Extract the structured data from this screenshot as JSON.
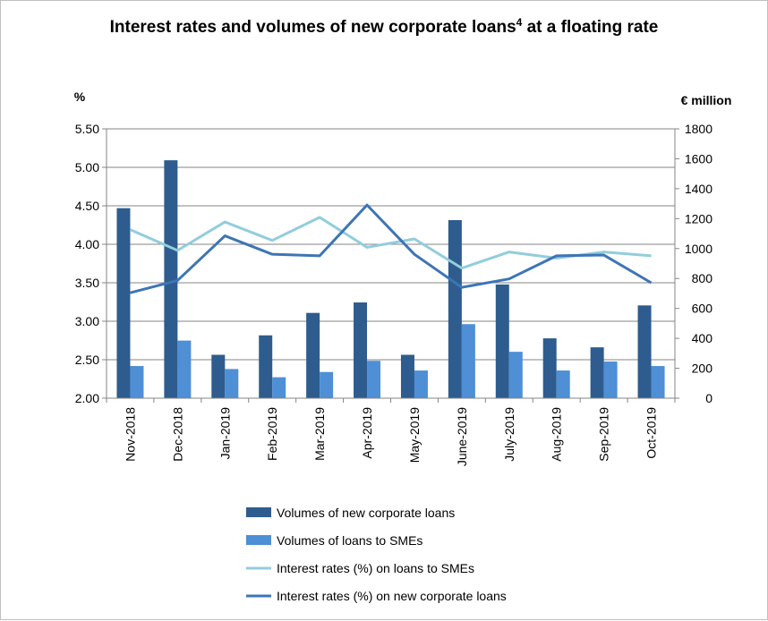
{
  "chart_data": {
    "type": "bar",
    "title": "Interest rates and volumes of new corporate loans",
    "title_superscript": "4",
    "title_suffix": " at a floating rate",
    "y_left_unit": "%",
    "y_right_unit": "€ million",
    "y_left_range": [
      2.0,
      5.5
    ],
    "y_left_ticks": [
      "2.00",
      "2.50",
      "3.00",
      "3.50",
      "4.00",
      "4.50",
      "5.00",
      "5.50"
    ],
    "y_right_range": [
      0,
      1800
    ],
    "y_right_ticks": [
      "0",
      "200",
      "400",
      "600",
      "800",
      "1000",
      "1200",
      "1400",
      "1600",
      "1800"
    ],
    "grid": true,
    "legend_position": "bottom",
    "categories": [
      "Nov-2018",
      "Dec-2018",
      "Jan-2019",
      "Feb-2019",
      "Mar-2019",
      "Apr-2019",
      "May-2019",
      "June-2019",
      "July-2019",
      "Aug-2019",
      "Sep-2019",
      "Oct-2019"
    ],
    "series": [
      {
        "name": "Volumes of new corporate loans",
        "type": "bar",
        "axis": "right",
        "color": "#2e5c8e",
        "values": [
          1270,
          1590,
          290,
          420,
          570,
          640,
          290,
          1190,
          760,
          400,
          340,
          620
        ]
      },
      {
        "name": "Volumes of loans to SMEs",
        "type": "bar",
        "axis": "right",
        "color": "#4e8fd6",
        "values": [
          215,
          385,
          195,
          140,
          175,
          250,
          185,
          495,
          310,
          185,
          245,
          215
        ]
      },
      {
        "name": "Interest rates (%) on loans to SMEs",
        "type": "line",
        "axis": "left",
        "color": "#92cddc",
        "values": [
          4.19,
          3.92,
          4.29,
          4.05,
          4.35,
          3.96,
          4.07,
          3.69,
          3.9,
          3.82,
          3.9,
          3.85
        ]
      },
      {
        "name": "Interest rates (%) on new corporate loans",
        "type": "line",
        "axis": "left",
        "color": "#3d75b5",
        "values": [
          3.37,
          3.53,
          4.11,
          3.87,
          3.85,
          4.51,
          3.87,
          3.44,
          3.55,
          3.85,
          3.86,
          3.5
        ]
      }
    ]
  }
}
